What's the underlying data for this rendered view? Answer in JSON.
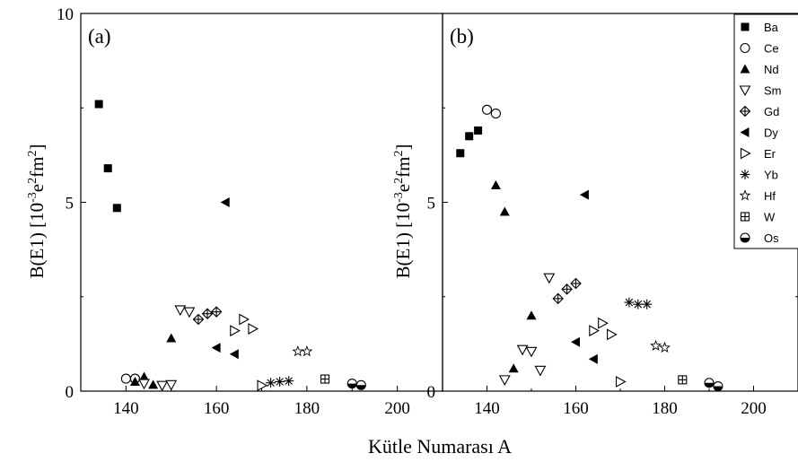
{
  "chart_data": [
    {
      "type": "scatter",
      "panel_label": "(a)",
      "ylabel": "B(E1) [10-3e2fm2]",
      "ylabel_parts": [
        "B(E1) [10",
        "-3",
        "e",
        "2",
        "fm",
        "2",
        "]"
      ],
      "xlim": [
        130,
        210
      ],
      "ylim": [
        0,
        10
      ],
      "yticks": [
        "0",
        "5",
        "10"
      ],
      "xticks": [
        "140",
        "160",
        "180",
        "200"
      ],
      "series": [
        {
          "name": "Ba",
          "marker": "filled-square",
          "x": [
            134,
            136,
            138
          ],
          "y": [
            7.6,
            5.9,
            4.85
          ]
        },
        {
          "name": "Ce",
          "marker": "open-circle",
          "x": [
            140,
            142
          ],
          "y": [
            0.33,
            0.33
          ]
        },
        {
          "name": "Nd",
          "marker": "filled-triangle-up",
          "x": [
            142,
            144,
            146,
            150
          ],
          "y": [
            0.25,
            0.38,
            0.17,
            1.4
          ]
        },
        {
          "name": "Sm",
          "marker": "open-triangle-down",
          "x": [
            144,
            148,
            150,
            152,
            154
          ],
          "y": [
            0.2,
            0.15,
            0.17,
            2.15,
            2.1
          ]
        },
        {
          "name": "Gd",
          "marker": "crossed-diamond",
          "x": [
            156,
            158,
            160
          ],
          "y": [
            1.9,
            2.05,
            2.1
          ]
        },
        {
          "name": "Dy",
          "marker": "filled-triangle-left",
          "x": [
            160,
            162,
            164
          ],
          "y": [
            1.15,
            5.0,
            0.98
          ]
        },
        {
          "name": "Er",
          "marker": "open-triangle-right",
          "x": [
            164,
            166,
            168,
            170
          ],
          "y": [
            1.6,
            1.9,
            1.65,
            0.15
          ]
        },
        {
          "name": "Yb",
          "marker": "asterisk",
          "x": [
            172,
            174,
            176
          ],
          "y": [
            0.22,
            0.25,
            0.27
          ]
        },
        {
          "name": "Hf",
          "marker": "open-star",
          "x": [
            178,
            180
          ],
          "y": [
            1.05,
            1.05
          ]
        },
        {
          "name": "W",
          "marker": "boxed-plus",
          "x": [
            184
          ],
          "y": [
            0.32
          ]
        },
        {
          "name": "Os",
          "marker": "half-filled-circle",
          "x": [
            190,
            192
          ],
          "y": [
            0.2,
            0.16
          ]
        }
      ]
    },
    {
      "type": "scatter",
      "panel_label": "(b)",
      "ylabel": "B(E1) [10-3e2fm2]",
      "ylabel_parts": [
        "B(E1) [10",
        "-3",
        "e",
        "2",
        "fm",
        "2",
        "]"
      ],
      "xlim": [
        130,
        210
      ],
      "ylim": [
        0,
        10
      ],
      "yticks": [
        "0",
        "5",
        "10"
      ],
      "xticks": [
        "140",
        "160",
        "180",
        "200"
      ],
      "series": [
        {
          "name": "Ba",
          "marker": "filled-square",
          "x": [
            134,
            136,
            138
          ],
          "y": [
            6.3,
            6.75,
            6.9
          ]
        },
        {
          "name": "Ce",
          "marker": "open-circle",
          "x": [
            140,
            142
          ],
          "y": [
            7.45,
            7.35
          ]
        },
        {
          "name": "Nd",
          "marker": "filled-triangle-up",
          "x": [
            142,
            144,
            146,
            150
          ],
          "y": [
            5.45,
            4.75,
            0.6,
            2.0
          ]
        },
        {
          "name": "Sm",
          "marker": "open-triangle-down",
          "x": [
            144,
            148,
            150,
            152,
            154
          ],
          "y": [
            0.3,
            1.1,
            1.05,
            0.55,
            3.0
          ]
        },
        {
          "name": "Gd",
          "marker": "crossed-diamond",
          "x": [
            156,
            158,
            160
          ],
          "y": [
            2.45,
            2.7,
            2.85
          ]
        },
        {
          "name": "Dy",
          "marker": "filled-triangle-left",
          "x": [
            160,
            162,
            164
          ],
          "y": [
            1.3,
            5.2,
            0.85
          ]
        },
        {
          "name": "Er",
          "marker": "open-triangle-right",
          "x": [
            164,
            166,
            168,
            170
          ],
          "y": [
            1.6,
            1.8,
            1.5,
            0.25
          ]
        },
        {
          "name": "Yb",
          "marker": "asterisk",
          "x": [
            172,
            174,
            176
          ],
          "y": [
            2.35,
            2.3,
            2.3
          ]
        },
        {
          "name": "Hf",
          "marker": "open-star",
          "x": [
            178,
            180
          ],
          "y": [
            1.2,
            1.15
          ]
        },
        {
          "name": "W",
          "marker": "boxed-plus",
          "x": [
            184
          ],
          "y": [
            0.3
          ]
        },
        {
          "name": "Os",
          "marker": "half-filled-circle",
          "x": [
            190,
            192
          ],
          "y": [
            0.22,
            0.13
          ]
        }
      ]
    }
  ],
  "xlabel": "Kütle Numarası A",
  "legend": {
    "placement": "top-right of panel (b)",
    "entries": [
      "Ba",
      "Ce",
      "Nd",
      "Sm",
      "Gd",
      "Dy",
      "Er",
      "Yb",
      "Hf",
      "W",
      "Os"
    ]
  }
}
